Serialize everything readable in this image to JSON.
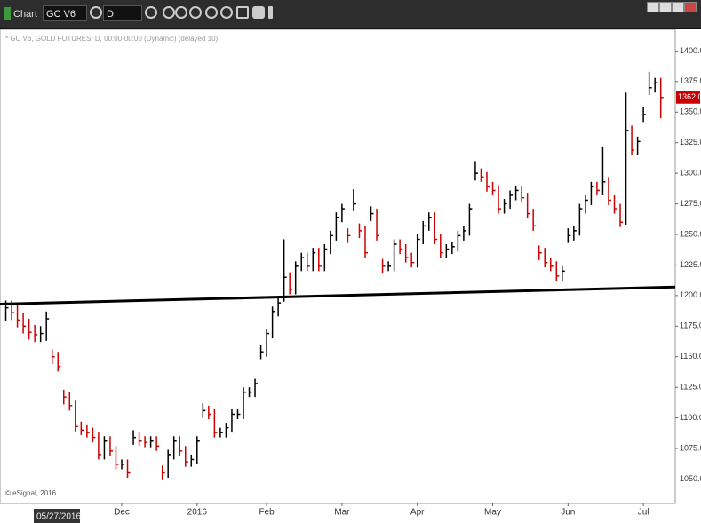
{
  "ui": {
    "app_title": "Chart",
    "symbol": "GC V6",
    "interval": "D",
    "cursor_date": "05/27/2016"
  },
  "chart_data": {
    "type": "hlc",
    "subtitle": "* GC V6, GOLD FUTURES, D, 00:00-00:00 (Dynamic) (delayed 10)",
    "credit": "© eSignal, 2016",
    "up_color": "#000000",
    "down_color": "#cc0000",
    "close": [
      1190,
      1186,
      1180,
      1175,
      1170,
      1168,
      1169,
      1181,
      1150,
      1142,
      1117,
      1110,
      1093,
      1090,
      1088,
      1084,
      1070,
      1081,
      1073,
      1062,
      1062,
      1055,
      1084,
      1081,
      1080,
      1081,
      1077,
      1055,
      1070,
      1081,
      1073,
      1064,
      1066,
      1081,
      1106,
      1103,
      1088,
      1088,
      1092,
      1103,
      1103,
      1121,
      1121,
      1128,
      1154,
      1169,
      1187,
      1194,
      1215,
      1205,
      1224,
      1231,
      1224,
      1235,
      1224,
      1238,
      1249,
      1264,
      1271,
      1249,
      1275,
      1253,
      1235,
      1267,
      1249,
      1224,
      1224,
      1242,
      1238,
      1231,
      1227,
      1246,
      1257,
      1264,
      1246,
      1235,
      1238,
      1240,
      1249,
      1253,
      1271,
      1300,
      1297,
      1289,
      1286,
      1271,
      1275,
      1282,
      1286,
      1280,
      1267,
      1257,
      1235,
      1227,
      1224,
      1216,
      1220,
      1249,
      1253,
      1271,
      1278,
      1289,
      1286,
      1293,
      1278,
      1271,
      1260,
      1335,
      1319,
      1326,
      1348,
      1370,
      1374,
      1362
    ],
    "high": [
      1196,
      1196,
      1192,
      1186,
      1181,
      1176,
      1175,
      1187,
      1156,
      1154,
      1123,
      1121,
      1114,
      1097,
      1094,
      1092,
      1088,
      1085,
      1085,
      1077,
      1066,
      1066,
      1090,
      1088,
      1085,
      1085,
      1085,
      1061,
      1074,
      1085,
      1085,
      1077,
      1070,
      1085,
      1112,
      1110,
      1107,
      1092,
      1096,
      1107,
      1107,
      1125,
      1125,
      1132,
      1160,
      1173,
      1191,
      1198,
      1246,
      1219,
      1228,
      1235,
      1235,
      1239,
      1239,
      1242,
      1253,
      1268,
      1275,
      1255,
      1287,
      1259,
      1257,
      1273,
      1271,
      1230,
      1228,
      1246,
      1246,
      1242,
      1235,
      1250,
      1261,
      1268,
      1268,
      1250,
      1242,
      1244,
      1253,
      1257,
      1275,
      1310,
      1304,
      1301,
      1293,
      1290,
      1279,
      1286,
      1290,
      1290,
      1284,
      1271,
      1241,
      1239,
      1231,
      1228,
      1224,
      1255,
      1257,
      1275,
      1282,
      1293,
      1293,
      1322,
      1297,
      1282,
      1275,
      1366,
      1339,
      1330,
      1354,
      1383,
      1378,
      1378
    ],
    "low": [
      1179,
      1180,
      1174,
      1169,
      1164,
      1162,
      1162,
      1163,
      1144,
      1138,
      1111,
      1106,
      1089,
      1086,
      1084,
      1080,
      1066,
      1066,
      1069,
      1058,
      1058,
      1051,
      1078,
      1077,
      1076,
      1076,
      1073,
      1049,
      1051,
      1066,
      1069,
      1060,
      1060,
      1062,
      1100,
      1099,
      1084,
      1084,
      1084,
      1088,
      1099,
      1099,
      1117,
      1117,
      1148,
      1150,
      1165,
      1183,
      1195,
      1201,
      1201,
      1220,
      1220,
      1220,
      1220,
      1220,
      1234,
      1245,
      1260,
      1243,
      1269,
      1247,
      1231,
      1261,
      1245,
      1218,
      1220,
      1220,
      1234,
      1227,
      1223,
      1223,
      1242,
      1253,
      1242,
      1231,
      1231,
      1234,
      1236,
      1245,
      1249,
      1294,
      1293,
      1285,
      1282,
      1267,
      1267,
      1271,
      1278,
      1276,
      1263,
      1253,
      1229,
      1223,
      1220,
      1212,
      1212,
      1243,
      1245,
      1249,
      1267,
      1274,
      1282,
      1282,
      1274,
      1267,
      1256,
      1258,
      1315,
      1315,
      1342,
      1364,
      1366,
      1345
    ],
    "last": {
      "value": 1362,
      "label": "1362.0"
    },
    "trendline": {
      "x": [
        -1,
        115.5
      ],
      "y": [
        1193,
        1207
      ]
    },
    "xlim": [
      -1,
      115.5
    ],
    "ylim": [
      1030,
      1417
    ],
    "xticks": [
      {
        "value": 20,
        "label": "Dec"
      },
      {
        "value": 33,
        "label": "2016"
      },
      {
        "value": 45,
        "label": "Feb"
      },
      {
        "value": 58,
        "label": "Mar"
      },
      {
        "value": 71,
        "label": "Apr"
      },
      {
        "value": 84,
        "label": "May"
      },
      {
        "value": 97,
        "label": "Jun"
      },
      {
        "value": 110,
        "label": "Jul"
      }
    ],
    "yticks": [
      {
        "value": 1050,
        "label": "1050.0"
      },
      {
        "value": 1075,
        "label": "1075.0"
      },
      {
        "value": 1100,
        "label": "1100.0"
      },
      {
        "value": 1125,
        "label": "1125.0"
      },
      {
        "value": 1150,
        "label": "1150.0"
      },
      {
        "value": 1175,
        "label": "1175.0"
      },
      {
        "value": 1200,
        "label": "1200.0"
      },
      {
        "value": 1225,
        "label": "1225.0"
      },
      {
        "value": 1250,
        "label": "1250.0"
      },
      {
        "value": 1275,
        "label": "1275.0"
      },
      {
        "value": 1300,
        "label": "1300.0"
      },
      {
        "value": 1325,
        "label": "1325.0"
      },
      {
        "value": 1350,
        "label": "1350.0"
      },
      {
        "value": 1375,
        "label": "1375.0"
      },
      {
        "value": 1400,
        "label": "1400.0"
      }
    ]
  }
}
